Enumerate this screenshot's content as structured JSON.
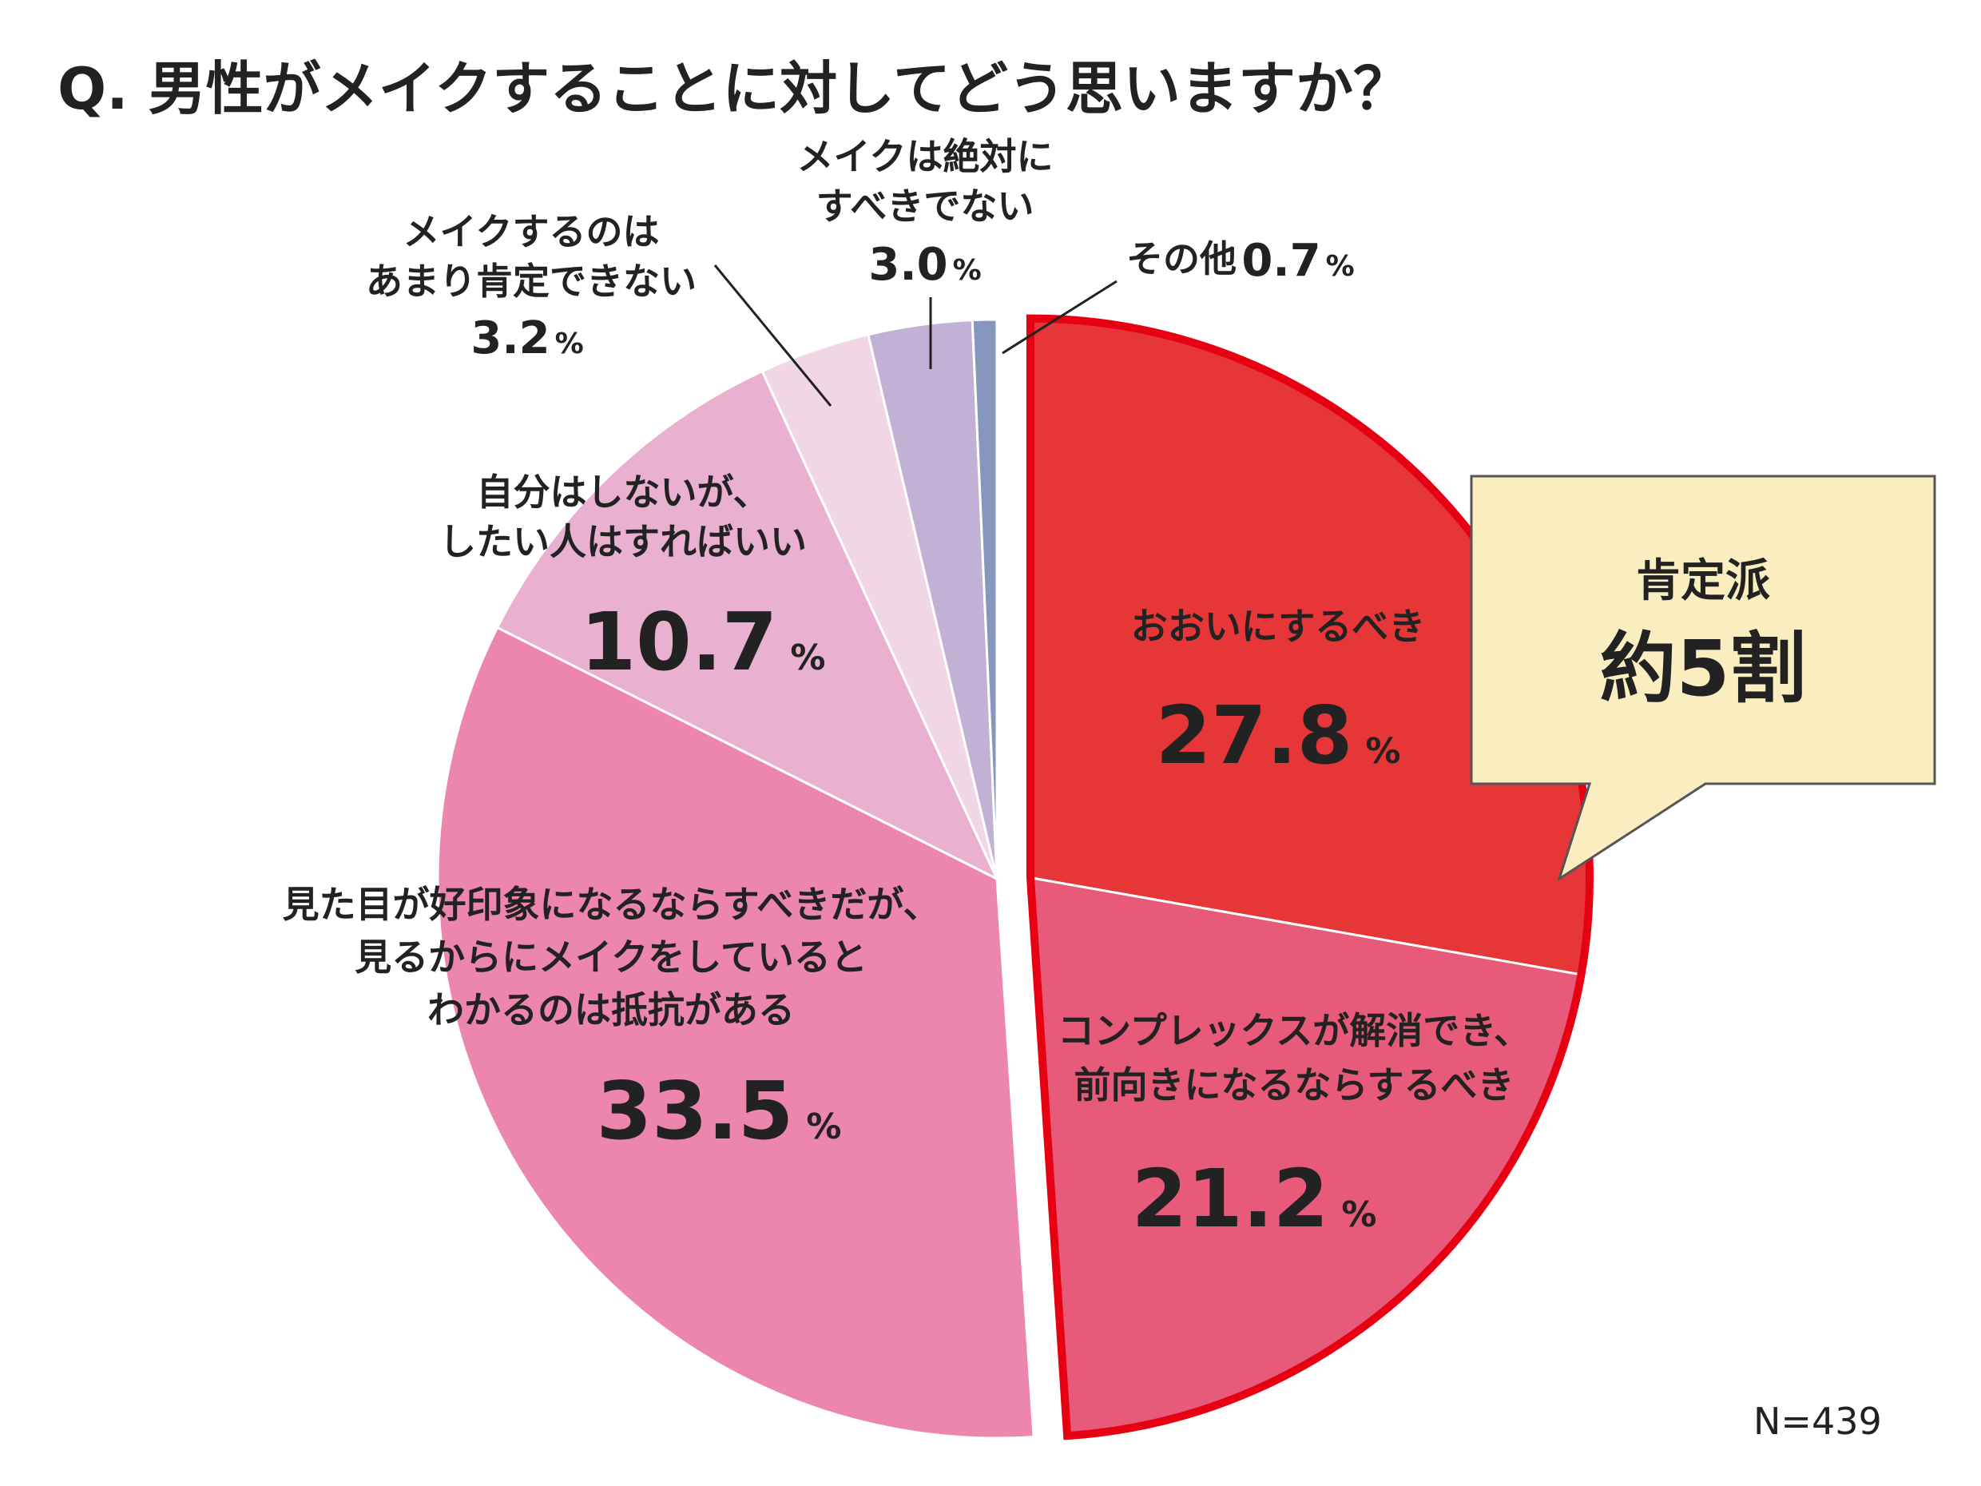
{
  "chart_data": {
    "type": "pie",
    "title": "Q. 男性がメイクすることに対してどう思いますか？",
    "unit": "%",
    "slices": [
      {
        "label": [
          "おおいにするべき"
        ],
        "value": 27.8,
        "color": "#e63637"
      },
      {
        "label": [
          "コンプレックスが解消でき、",
          "前向きになるならするべき"
        ],
        "value": 21.2,
        "color": "#e75a79"
      },
      {
        "label": [
          "見た目が好印象になるならすべきだが、",
          "見るからにメイクをしていると",
          "わかるのは抵抗がある"
        ],
        "value": 33.5,
        "color": "#ed86ae"
      },
      {
        "label": [
          "自分はしないが、",
          "したい人はすればいい"
        ],
        "value": 10.7,
        "color": "#e9b0cf"
      },
      {
        "label": [
          "メイクするのは",
          "あまり肯定できない"
        ],
        "value": 3.2,
        "color": "#f1d6e6"
      },
      {
        "label": [
          "メイクは絶対に",
          "すべきでない"
        ],
        "value": 3.0,
        "color": "#c1b2d5"
      },
      {
        "label": [
          "その他"
        ],
        "value": 0.7,
        "color": "#8597bd"
      }
    ],
    "highlight": {
      "slices": [
        0,
        1
      ],
      "outline_color": "#e60012",
      "callout_title": "肯定派",
      "callout_value": "約5割",
      "callout_bg": "#faedc0",
      "callout_text_color": "#e63637"
    },
    "note": "N=439"
  }
}
